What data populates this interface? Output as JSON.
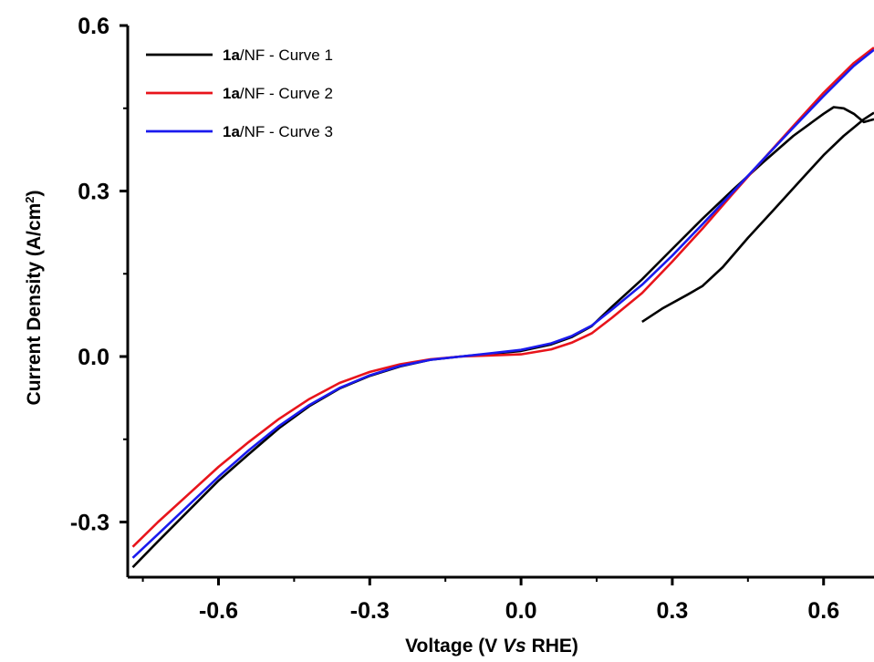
{
  "chart_data": {
    "type": "line",
    "xlabel_parts": [
      {
        "text": "Voltage (V ",
        "italic": false
      },
      {
        "text": "Vs",
        "italic": true
      },
      {
        "text": " RHE)",
        "italic": false
      }
    ],
    "ylabel": "Current Density (A/cm",
    "ylabel_sup": "2",
    "ylabel_close": ")",
    "xlim": [
      -0.78,
      0.7
    ],
    "ylim": [
      -0.4,
      0.6
    ],
    "xticks": [
      -0.6,
      -0.3,
      0.0,
      0.3,
      0.6
    ],
    "xtick_labels": [
      "-0.6",
      "-0.3",
      "0.0",
      "0.3",
      "0.6"
    ],
    "yticks": [
      -0.3,
      0.0,
      0.3,
      0.6
    ],
    "ytick_labels": [
      "-0.3",
      "0.0",
      "0.3",
      "0.6"
    ],
    "grid": false,
    "legend_position": "top-left",
    "series": [
      {
        "name_bold": "1a",
        "name_rest": "/NF - Curve 1",
        "color": "#000000",
        "segments": [
          {
            "x": [
              -0.77,
              -0.72,
              -0.66,
              -0.6,
              -0.54,
              -0.48,
              -0.42,
              -0.36,
              -0.3,
              -0.24,
              -0.18,
              -0.12,
              -0.06,
              0.0,
              0.06,
              0.1,
              0.14,
              0.18,
              0.24,
              0.3,
              0.36,
              0.42,
              0.48,
              0.54,
              0.6,
              0.62,
              0.64,
              0.66,
              0.68,
              0.7
            ],
            "y": [
              -0.382,
              -0.335,
              -0.28,
              -0.225,
              -0.177,
              -0.13,
              -0.09,
              -0.058,
              -0.035,
              -0.018,
              -0.006,
              0.0,
              0.005,
              0.01,
              0.022,
              0.035,
              0.055,
              0.09,
              0.14,
              0.195,
              0.25,
              0.302,
              0.352,
              0.4,
              0.44,
              0.452,
              0.45,
              0.44,
              0.425,
              0.43
            ]
          },
          {
            "x": [
              0.24,
              0.28,
              0.33,
              0.36,
              0.4,
              0.45,
              0.5,
              0.55,
              0.6,
              0.64,
              0.66,
              0.68,
              0.7
            ],
            "y": [
              0.063,
              0.087,
              0.112,
              0.128,
              0.162,
              0.215,
              0.265,
              0.315,
              0.365,
              0.4,
              0.415,
              0.43,
              0.442
            ]
          }
        ]
      },
      {
        "name_bold": "1a",
        "name_rest": "/NF - Curve 2",
        "color": "#e8141b",
        "segments": [
          {
            "x": [
              -0.77,
              -0.72,
              -0.66,
              -0.6,
              -0.54,
              -0.48,
              -0.42,
              -0.36,
              -0.3,
              -0.24,
              -0.18,
              -0.12,
              -0.06,
              0.0,
              0.06,
              0.1,
              0.14,
              0.18,
              0.24,
              0.3,
              0.36,
              0.42,
              0.48,
              0.54,
              0.6,
              0.66,
              0.7
            ],
            "y": [
              -0.345,
              -0.3,
              -0.25,
              -0.2,
              -0.155,
              -0.113,
              -0.077,
              -0.048,
              -0.028,
              -0.014,
              -0.005,
              0.0,
              0.002,
              0.004,
              0.013,
              0.025,
              0.042,
              0.07,
              0.115,
              0.172,
              0.232,
              0.295,
              0.357,
              0.418,
              0.478,
              0.532,
              0.56
            ]
          }
        ]
      },
      {
        "name_bold": "1a",
        "name_rest": "/NF - Curve 3",
        "color": "#1a1aee",
        "segments": [
          {
            "x": [
              -0.77,
              -0.72,
              -0.66,
              -0.6,
              -0.54,
              -0.48,
              -0.42,
              -0.36,
              -0.3,
              -0.24,
              -0.18,
              -0.12,
              -0.06,
              0.0,
              0.06,
              0.1,
              0.14,
              0.18,
              0.24,
              0.3,
              0.36,
              0.42,
              0.48,
              0.54,
              0.6,
              0.66,
              0.7
            ],
            "y": [
              -0.365,
              -0.322,
              -0.27,
              -0.218,
              -0.17,
              -0.126,
              -0.088,
              -0.057,
              -0.034,
              -0.017,
              -0.006,
              0.0,
              0.006,
              0.012,
              0.024,
              0.037,
              0.056,
              0.085,
              0.13,
              0.183,
              0.24,
              0.298,
              0.357,
              0.415,
              0.472,
              0.527,
              0.556
            ]
          }
        ]
      }
    ]
  }
}
